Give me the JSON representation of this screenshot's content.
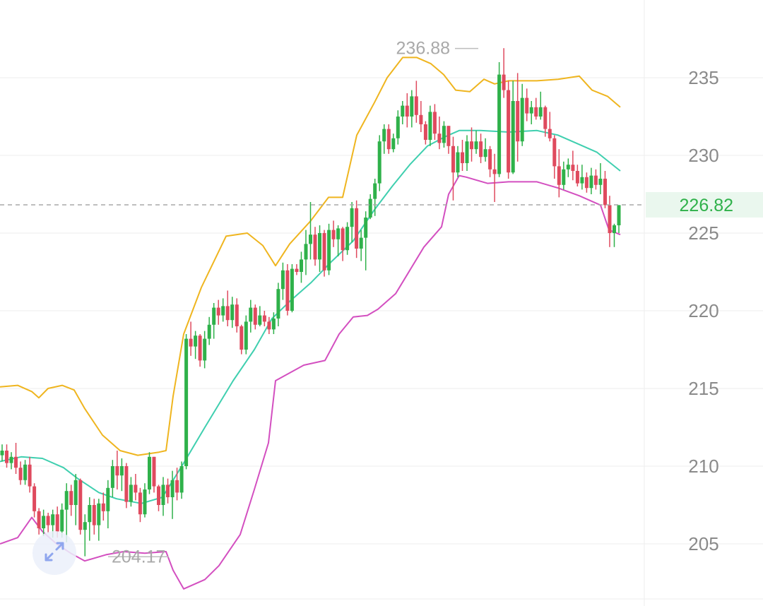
{
  "colors": {
    "up": "#2fb14a",
    "down": "#df4a5e",
    "upper_band": "#efb51f",
    "middle_band": "#3fcfaf",
    "lower_band": "#d34fc0",
    "grid": "#eeeeee",
    "price_line": "#a8a8a8",
    "price_tag_bg": "#eaf7ee",
    "price_tag_text": "#2fb14a",
    "expand_icon": "#8fa6ee"
  },
  "icons": {
    "expand": "expand-diagonal-arrows-icon"
  },
  "chart_data": {
    "type": "candlestick",
    "y_axis": {
      "position": "right",
      "ticks": [
        "235",
        "230",
        "225",
        "220",
        "215",
        "210",
        "205"
      ],
      "range": [
        202,
        239
      ]
    },
    "grid": true,
    "current_price": "226.82",
    "annotations": {
      "high": "236.88",
      "low": "204.17"
    },
    "candles": [
      [
        210.7,
        211.4,
        210.3,
        211.0
      ],
      [
        211.0,
        211.4,
        209.9,
        210.2
      ],
      [
        210.2,
        210.9,
        209.8,
        210.6
      ],
      [
        210.6,
        211.5,
        209.5,
        209.9
      ],
      [
        209.9,
        210.3,
        208.8,
        209.1
      ],
      [
        209.1,
        210.4,
        208.8,
        210.1
      ],
      [
        210.1,
        210.6,
        208.3,
        208.7
      ],
      [
        208.7,
        208.9,
        206.7,
        207.1
      ],
      [
        207.1,
        207.3,
        205.6,
        206.0
      ],
      [
        206.0,
        207.2,
        205.5,
        206.8
      ],
      [
        206.8,
        207.0,
        205.7,
        206.2
      ],
      [
        206.2,
        207.2,
        205.4,
        206.9
      ],
      [
        206.9,
        207.4,
        205.4,
        205.8
      ],
      [
        205.8,
        207.6,
        205.4,
        207.2
      ],
      [
        207.2,
        208.9,
        205.1,
        208.4
      ],
      [
        208.4,
        208.8,
        206.8,
        207.5
      ],
      [
        207.5,
        209.5,
        206.2,
        209.1
      ],
      [
        209.1,
        209.2,
        205.6,
        205.9
      ],
      [
        205.9,
        206.9,
        204.2,
        206.4
      ],
      [
        206.4,
        208.0,
        205.2,
        207.5
      ],
      [
        207.5,
        207.9,
        205.6,
        206.2
      ],
      [
        206.2,
        207.9,
        205.2,
        207.6
      ],
      [
        207.6,
        208.3,
        206.5,
        207.1
      ],
      [
        207.1,
        209.1,
        206.0,
        208.6
      ],
      [
        208.6,
        210.4,
        208.0,
        210.0
      ],
      [
        210.0,
        211.0,
        208.5,
        209.4
      ],
      [
        209.4,
        210.5,
        208.4,
        210.0
      ],
      [
        210.0,
        210.2,
        207.3,
        207.7
      ],
      [
        207.7,
        209.3,
        207.4,
        208.8
      ],
      [
        208.8,
        209.5,
        207.8,
        208.3
      ],
      [
        208.3,
        208.6,
        206.4,
        206.9
      ],
      [
        206.9,
        208.9,
        206.7,
        208.5
      ],
      [
        208.5,
        210.9,
        208.2,
        210.6
      ],
      [
        210.6,
        210.6,
        208.3,
        208.7
      ],
      [
        208.7,
        208.8,
        207.1,
        207.5
      ],
      [
        207.5,
        209.3,
        206.8,
        208.8
      ],
      [
        208.8,
        209.2,
        207.6,
        208.0
      ],
      [
        208.0,
        209.7,
        206.6,
        209.1
      ],
      [
        209.1,
        209.9,
        207.8,
        208.3
      ],
      [
        208.3,
        210.3,
        207.9,
        210.0
      ],
      [
        210.0,
        218.5,
        209.8,
        218.2
      ],
      [
        218.2,
        219.3,
        217.1,
        217.7
      ],
      [
        217.7,
        218.7,
        216.9,
        218.4
      ],
      [
        218.4,
        218.5,
        216.4,
        216.8
      ],
      [
        216.8,
        218.7,
        216.3,
        218.2
      ],
      [
        218.2,
        219.6,
        217.8,
        219.1
      ],
      [
        219.1,
        220.5,
        218.2,
        220.2
      ],
      [
        220.2,
        220.7,
        219.1,
        219.7
      ],
      [
        219.7,
        220.8,
        219.3,
        220.3
      ],
      [
        220.3,
        221.3,
        219.0,
        219.4
      ],
      [
        219.4,
        220.9,
        218.9,
        220.4
      ],
      [
        220.4,
        220.8,
        218.6,
        219.0
      ],
      [
        219.0,
        219.1,
        217.2,
        217.5
      ],
      [
        217.5,
        219.7,
        217.2,
        219.3
      ],
      [
        219.3,
        220.7,
        218.6,
        220.2
      ],
      [
        220.2,
        220.4,
        218.8,
        219.1
      ],
      [
        219.1,
        220.3,
        219.0,
        219.7
      ],
      [
        219.7,
        220.0,
        219.0,
        219.3
      ],
      [
        219.3,
        219.6,
        218.5,
        218.8
      ],
      [
        218.8,
        219.9,
        218.5,
        219.5
      ],
      [
        219.5,
        221.8,
        219.0,
        221.4
      ],
      [
        221.4,
        223.1,
        220.7,
        222.6
      ],
      [
        222.6,
        223.0,
        219.7,
        220.0
      ],
      [
        220.0,
        223.0,
        219.9,
        222.7
      ],
      [
        222.7,
        223.0,
        222.3,
        222.5
      ],
      [
        222.5,
        223.8,
        221.8,
        223.3
      ],
      [
        223.3,
        225.2,
        222.3,
        224.3
      ],
      [
        224.3,
        227.0,
        223.3,
        224.9
      ],
      [
        224.9,
        225.4,
        222.9,
        223.3
      ],
      [
        223.3,
        225.5,
        222.5,
        225.0
      ],
      [
        225.0,
        225.2,
        222.2,
        222.6
      ],
      [
        222.6,
        225.6,
        222.3,
        225.2
      ],
      [
        225.2,
        225.8,
        224.1,
        224.6
      ],
      [
        224.6,
        225.5,
        223.5,
        225.3
      ],
      [
        225.3,
        225.4,
        223.2,
        223.9
      ],
      [
        223.9,
        225.7,
        223.6,
        225.4
      ],
      [
        225.4,
        227.0,
        224.4,
        226.6
      ],
      [
        226.6,
        227.1,
        223.4,
        224.0
      ],
      [
        224.0,
        225.2,
        223.2,
        224.7
      ],
      [
        224.7,
        226.4,
        222.6,
        226.0
      ],
      [
        226.0,
        227.5,
        225.9,
        227.2
      ],
      [
        227.2,
        228.5,
        226.1,
        228.2
      ],
      [
        228.2,
        231.3,
        227.7,
        230.9
      ],
      [
        230.9,
        232.0,
        230.1,
        231.7
      ],
      [
        231.7,
        232.0,
        230.1,
        230.4
      ],
      [
        230.4,
        231.4,
        230.2,
        231.1
      ],
      [
        231.1,
        232.9,
        230.7,
        232.5
      ],
      [
        232.5,
        233.5,
        232.0,
        233.2
      ],
      [
        233.2,
        234.0,
        231.8,
        232.5
      ],
      [
        232.5,
        234.2,
        231.8,
        233.8
      ],
      [
        233.8,
        234.8,
        232.1,
        232.6
      ],
      [
        232.6,
        233.5,
        231.5,
        232.0
      ],
      [
        232.0,
        232.2,
        230.7,
        231.0
      ],
      [
        231.0,
        233.2,
        230.6,
        232.8
      ],
      [
        232.8,
        233.3,
        231.0,
        231.4
      ],
      [
        231.4,
        232.5,
        230.4,
        230.8
      ],
      [
        230.8,
        232.2,
        230.5,
        231.9
      ],
      [
        231.9,
        231.9,
        230.1,
        230.6
      ],
      [
        230.6,
        231.2,
        227.1,
        228.9
      ],
      [
        228.9,
        230.6,
        228.6,
        230.2
      ],
      [
        230.2,
        231.0,
        229.0,
        229.5
      ],
      [
        229.5,
        231.3,
        229.0,
        230.9
      ],
      [
        230.9,
        231.8,
        229.6,
        230.4
      ],
      [
        230.4,
        231.6,
        230.1,
        230.9
      ],
      [
        230.9,
        231.4,
        229.5,
        229.9
      ],
      [
        229.9,
        231.1,
        229.6,
        230.4
      ],
      [
        230.4,
        230.6,
        228.6,
        229.1
      ],
      [
        229.1,
        230.1,
        227.0,
        228.8
      ],
      [
        228.8,
        236.0,
        228.6,
        235.2
      ],
      [
        235.2,
        236.9,
        233.7,
        234.2
      ],
      [
        234.2,
        234.8,
        228.5,
        228.9
      ],
      [
        228.9,
        234.8,
        228.8,
        233.5
      ],
      [
        233.5,
        235.3,
        229.6,
        230.9
      ],
      [
        230.9,
        234.6,
        230.6,
        233.7
      ],
      [
        233.7,
        234.3,
        232.2,
        232.7
      ],
      [
        232.7,
        233.5,
        232.0,
        233.1
      ],
      [
        233.1,
        233.7,
        232.3,
        232.5
      ],
      [
        232.5,
        234.1,
        232.3,
        233.1
      ],
      [
        233.1,
        233.2,
        231.2,
        231.7
      ],
      [
        231.7,
        232.8,
        230.9,
        231.1
      ],
      [
        231.1,
        231.3,
        228.5,
        229.3
      ],
      [
        229.3,
        230.4,
        227.3,
        228.1
      ],
      [
        228.1,
        229.6,
        227.8,
        229.1
      ],
      [
        229.1,
        229.8,
        228.6,
        229.4
      ],
      [
        229.4,
        230.3,
        228.4,
        229.0
      ],
      [
        229.0,
        229.4,
        228.0,
        228.2
      ],
      [
        228.2,
        229.4,
        227.8,
        228.6
      ],
      [
        228.6,
        228.9,
        227.6,
        227.9
      ],
      [
        227.9,
        229.2,
        227.5,
        228.7
      ],
      [
        228.7,
        229.1,
        227.8,
        228.1
      ],
      [
        228.1,
        229.5,
        227.5,
        228.5
      ],
      [
        228.5,
        229.0,
        226.6,
        226.8
      ],
      [
        226.8,
        227.4,
        224.1,
        225.0
      ],
      [
        225.0,
        225.6,
        224.1,
        225.5
      ],
      [
        225.5,
        226.8,
        225.0,
        226.8
      ]
    ],
    "upper_band": [
      [
        0,
        215.1
      ],
      [
        25,
        215.2
      ],
      [
        45,
        214.8
      ],
      [
        55,
        214.4
      ],
      [
        68,
        215.0
      ],
      [
        88,
        215.2
      ],
      [
        105,
        214.9
      ],
      [
        120,
        213.7
      ],
      [
        145,
        212.0
      ],
      [
        170,
        211.0
      ],
      [
        195,
        210.7
      ],
      [
        225,
        210.9
      ],
      [
        235,
        211.0
      ],
      [
        245,
        214.5
      ],
      [
        260,
        218.5
      ],
      [
        285,
        221.5
      ],
      [
        320,
        224.8
      ],
      [
        350,
        225.0
      ],
      [
        372,
        224.2
      ],
      [
        390,
        222.9
      ],
      [
        410,
        224.3
      ],
      [
        440,
        225.8
      ],
      [
        465,
        227.3
      ],
      [
        485,
        227.3
      ],
      [
        505,
        231.3
      ],
      [
        530,
        233.4
      ],
      [
        548,
        235.0
      ],
      [
        570,
        236.3
      ],
      [
        590,
        236.3
      ],
      [
        610,
        235.9
      ],
      [
        628,
        235.2
      ],
      [
        645,
        234.2
      ],
      [
        665,
        234.1
      ],
      [
        685,
        234.9
      ],
      [
        700,
        234.6
      ],
      [
        720,
        234.8
      ],
      [
        760,
        234.8
      ],
      [
        790,
        234.9
      ],
      [
        820,
        235.1
      ],
      [
        838,
        234.2
      ],
      [
        860,
        233.8
      ],
      [
        878,
        233.1
      ]
    ],
    "middle_band": [
      [
        0,
        210.3
      ],
      [
        30,
        210.6
      ],
      [
        60,
        210.5
      ],
      [
        90,
        209.9
      ],
      [
        110,
        209.2
      ],
      [
        140,
        208.3
      ],
      [
        165,
        207.9
      ],
      [
        200,
        207.6
      ],
      [
        230,
        208.0
      ],
      [
        260,
        210.2
      ],
      [
        290,
        212.5
      ],
      [
        330,
        215.5
      ],
      [
        360,
        217.5
      ],
      [
        385,
        219.5
      ],
      [
        410,
        220.6
      ],
      [
        440,
        221.8
      ],
      [
        470,
        223.2
      ],
      [
        500,
        224.5
      ],
      [
        530,
        226.5
      ],
      [
        555,
        228.0
      ],
      [
        580,
        229.4
      ],
      [
        605,
        230.6
      ],
      [
        630,
        231.2
      ],
      [
        650,
        231.6
      ],
      [
        680,
        231.6
      ],
      [
        720,
        231.5
      ],
      [
        760,
        231.6
      ],
      [
        790,
        231.3
      ],
      [
        820,
        230.7
      ],
      [
        845,
        230.2
      ],
      [
        878,
        229.0
      ]
    ],
    "lower_band": [
      [
        0,
        205.0
      ],
      [
        25,
        205.4
      ],
      [
        45,
        206.7
      ],
      [
        60,
        205.8
      ],
      [
        80,
        205.0
      ],
      [
        100,
        204.4
      ],
      [
        120,
        203.9
      ],
      [
        150,
        204.3
      ],
      [
        175,
        204.5
      ],
      [
        205,
        204.4
      ],
      [
        235,
        204.5
      ],
      [
        245,
        203.3
      ],
      [
        260,
        202.1
      ],
      [
        290,
        202.7
      ],
      [
        310,
        203.6
      ],
      [
        340,
        205.6
      ],
      [
        360,
        208.5
      ],
      [
        380,
        211.5
      ],
      [
        390,
        215.5
      ],
      [
        410,
        216.0
      ],
      [
        430,
        216.5
      ],
      [
        460,
        216.8
      ],
      [
        480,
        218.5
      ],
      [
        500,
        219.6
      ],
      [
        520,
        219.7
      ],
      [
        535,
        220.1
      ],
      [
        560,
        221.1
      ],
      [
        580,
        222.6
      ],
      [
        600,
        224.1
      ],
      [
        625,
        225.4
      ],
      [
        635,
        227.5
      ],
      [
        650,
        228.7
      ],
      [
        660,
        228.6
      ],
      [
        690,
        228.2
      ],
      [
        720,
        228.3
      ],
      [
        760,
        228.3
      ],
      [
        790,
        227.9
      ],
      [
        820,
        227.4
      ],
      [
        850,
        226.8
      ],
      [
        862,
        225.2
      ],
      [
        878,
        224.9
      ]
    ]
  }
}
